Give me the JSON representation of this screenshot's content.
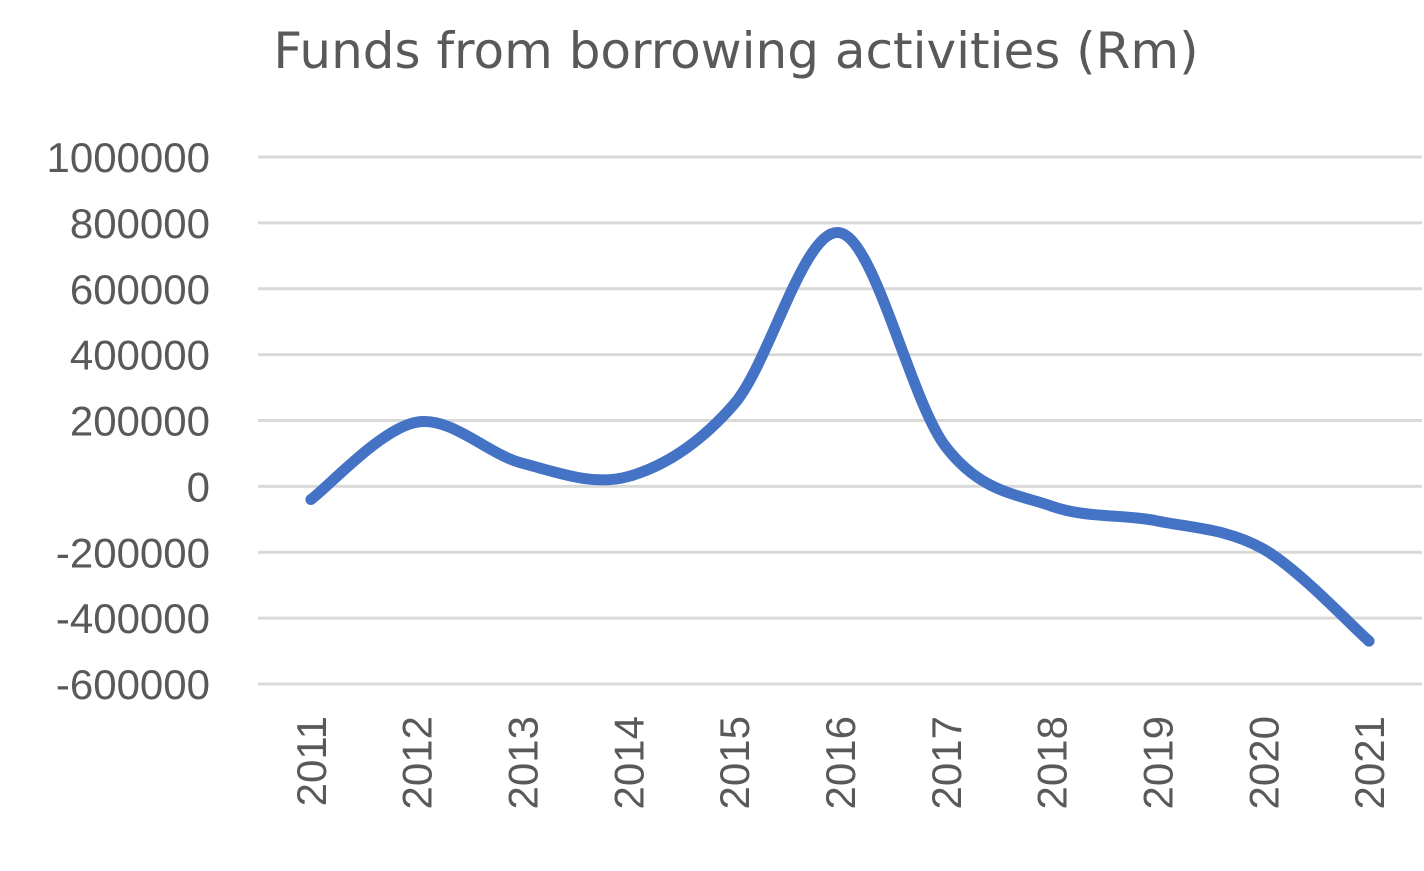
{
  "chart_data": {
    "type": "line",
    "title": "Funds from borrowing activities (Rm)",
    "xlabel": "",
    "ylabel": "",
    "categories": [
      "2011",
      "2012",
      "2013",
      "2014",
      "2015",
      "2016",
      "2017",
      "2018",
      "2019",
      "2020",
      "2021"
    ],
    "series": [
      {
        "values": [
          -40000,
          195000,
          70000,
          30000,
          250000,
          770000,
          120000,
          -60000,
          -105000,
          -190000,
          -470000
        ],
        "color": "#4472c4"
      }
    ],
    "ylim": [
      -600000,
      1000000
    ],
    "yticks": [
      "1000000",
      "800000",
      "600000",
      "400000",
      "200000",
      "0",
      "-200000",
      "-400000",
      "-600000"
    ],
    "ytick_values": [
      1000000,
      800000,
      600000,
      400000,
      200000,
      0,
      -200000,
      -400000,
      -600000
    ],
    "grid": true,
    "legend": "none",
    "smooth": true
  }
}
